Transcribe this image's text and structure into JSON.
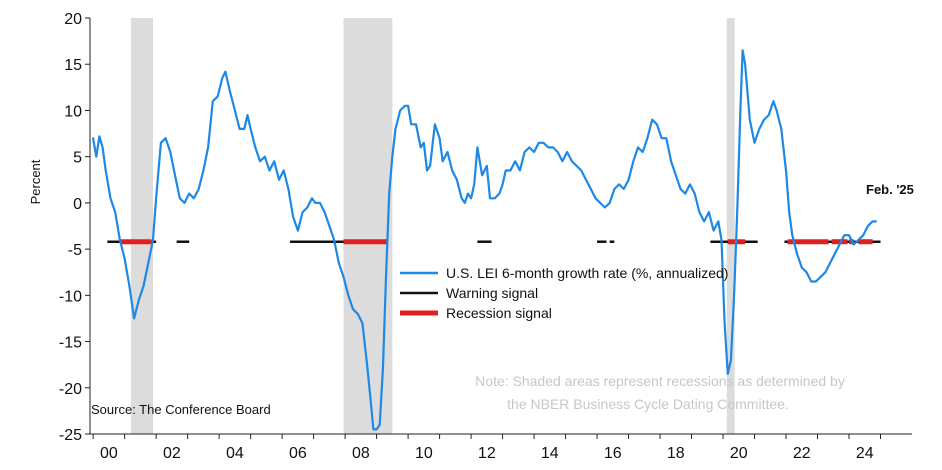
{
  "chart_data": {
    "type": "line",
    "title": "",
    "xlabel": "",
    "ylabel": "Percent",
    "ylim": [
      -25,
      20
    ],
    "xlim": [
      1999.9,
      2026.0
    ],
    "yticks": [
      20,
      15,
      10,
      5,
      0,
      -5,
      -10,
      -15,
      -20,
      -25
    ],
    "xticks": [
      {
        "year": 2000.5,
        "label": "00"
      },
      {
        "year": 2002.5,
        "label": "02"
      },
      {
        "year": 2004.5,
        "label": "04"
      },
      {
        "year": 2006.5,
        "label": "06"
      },
      {
        "year": 2008.5,
        "label": "08"
      },
      {
        "year": 2010.5,
        "label": "10"
      },
      {
        "year": 2012.5,
        "label": "12"
      },
      {
        "year": 2014.5,
        "label": "14"
      },
      {
        "year": 2016.5,
        "label": "16"
      },
      {
        "year": 2018.5,
        "label": "18"
      },
      {
        "year": 2020.5,
        "label": "20"
      },
      {
        "year": 2022.5,
        "label": "22"
      },
      {
        "year": 2024.5,
        "label": "24"
      }
    ],
    "recessions": [
      [
        2001.2,
        2001.9
      ],
      [
        2007.95,
        2009.5
      ],
      [
        2020.12,
        2020.37
      ]
    ],
    "series": [
      {
        "name": "U.S. LEI 6-month growth rate (%, annualized)",
        "color": "#1e88e5",
        "points": [
          [
            2000.0,
            7.0
          ],
          [
            2000.1,
            5.0
          ],
          [
            2000.2,
            7.2
          ],
          [
            2000.3,
            6.0
          ],
          [
            2000.4,
            3.5
          ],
          [
            2000.55,
            0.5
          ],
          [
            2000.7,
            -1.0
          ],
          [
            2000.85,
            -4.0
          ],
          [
            2001.0,
            -6.0
          ],
          [
            2001.15,
            -9.0
          ],
          [
            2001.3,
            -12.5
          ],
          [
            2001.45,
            -10.5
          ],
          [
            2001.6,
            -9.0
          ],
          [
            2001.75,
            -6.5
          ],
          [
            2001.9,
            -4.0
          ],
          [
            2002.0,
            0.5
          ],
          [
            2002.15,
            6.5
          ],
          [
            2002.3,
            7.0
          ],
          [
            2002.45,
            5.5
          ],
          [
            2002.6,
            3.0
          ],
          [
            2002.75,
            0.5
          ],
          [
            2002.9,
            0.0
          ],
          [
            2003.05,
            1.0
          ],
          [
            2003.2,
            0.5
          ],
          [
            2003.35,
            1.5
          ],
          [
            2003.5,
            3.5
          ],
          [
            2003.65,
            6.0
          ],
          [
            2003.8,
            11.0
          ],
          [
            2003.95,
            11.5
          ],
          [
            2004.1,
            13.5
          ],
          [
            2004.2,
            14.2
          ],
          [
            2004.35,
            12.0
          ],
          [
            2004.5,
            10.0
          ],
          [
            2004.65,
            8.0
          ],
          [
            2004.8,
            8.0
          ],
          [
            2004.9,
            9.5
          ],
          [
            2005.0,
            8.0
          ],
          [
            2005.15,
            6.0
          ],
          [
            2005.3,
            4.5
          ],
          [
            2005.45,
            5.0
          ],
          [
            2005.6,
            3.5
          ],
          [
            2005.75,
            4.5
          ],
          [
            2005.9,
            2.5
          ],
          [
            2006.05,
            3.5
          ],
          [
            2006.2,
            1.5
          ],
          [
            2006.35,
            -1.5
          ],
          [
            2006.5,
            -3.0
          ],
          [
            2006.65,
            -1.0
          ],
          [
            2006.8,
            -0.5
          ],
          [
            2006.95,
            0.5
          ],
          [
            2007.05,
            0.0
          ],
          [
            2007.2,
            0.0
          ],
          [
            2007.35,
            -1.0
          ],
          [
            2007.5,
            -2.5
          ],
          [
            2007.65,
            -4.0
          ],
          [
            2007.8,
            -6.5
          ],
          [
            2007.95,
            -8.0
          ],
          [
            2008.1,
            -10.0
          ],
          [
            2008.25,
            -11.5
          ],
          [
            2008.4,
            -12.0
          ],
          [
            2008.55,
            -13.0
          ],
          [
            2008.7,
            -17.5
          ],
          [
            2008.8,
            -21.0
          ],
          [
            2008.9,
            -24.5
          ],
          [
            2009.0,
            -24.5
          ],
          [
            2009.1,
            -24.0
          ],
          [
            2009.2,
            -18.0
          ],
          [
            2009.3,
            -8.0
          ],
          [
            2009.4,
            1.0
          ],
          [
            2009.5,
            5.0
          ],
          [
            2009.6,
            8.0
          ],
          [
            2009.75,
            10.0
          ],
          [
            2009.9,
            10.5
          ],
          [
            2010.0,
            10.5
          ],
          [
            2010.1,
            8.5
          ],
          [
            2010.25,
            8.5
          ],
          [
            2010.4,
            6.0
          ],
          [
            2010.5,
            6.5
          ],
          [
            2010.6,
            3.5
          ],
          [
            2010.7,
            4.0
          ],
          [
            2010.85,
            8.5
          ],
          [
            2011.0,
            7.0
          ],
          [
            2011.1,
            4.5
          ],
          [
            2011.25,
            5.5
          ],
          [
            2011.4,
            3.5
          ],
          [
            2011.55,
            2.5
          ],
          [
            2011.7,
            0.5
          ],
          [
            2011.8,
            0.0
          ],
          [
            2011.9,
            1.0
          ],
          [
            2012.0,
            0.5
          ],
          [
            2012.1,
            2.0
          ],
          [
            2012.2,
            6.0
          ],
          [
            2012.35,
            3.0
          ],
          [
            2012.5,
            4.0
          ],
          [
            2012.6,
            0.5
          ],
          [
            2012.75,
            0.5
          ],
          [
            2012.9,
            1.0
          ],
          [
            2013.0,
            2.0
          ],
          [
            2013.1,
            3.5
          ],
          [
            2013.25,
            3.5
          ],
          [
            2013.4,
            4.5
          ],
          [
            2013.55,
            3.5
          ],
          [
            2013.7,
            5.5
          ],
          [
            2013.85,
            6.0
          ],
          [
            2014.0,
            5.5
          ],
          [
            2014.15,
            6.5
          ],
          [
            2014.3,
            6.5
          ],
          [
            2014.45,
            6.0
          ],
          [
            2014.6,
            6.0
          ],
          [
            2014.75,
            5.5
          ],
          [
            2014.9,
            4.5
          ],
          [
            2015.05,
            5.5
          ],
          [
            2015.2,
            4.5
          ],
          [
            2015.35,
            4.0
          ],
          [
            2015.5,
            3.5
          ],
          [
            2015.65,
            2.5
          ],
          [
            2015.8,
            1.5
          ],
          [
            2015.95,
            0.5
          ],
          [
            2016.1,
            0.0
          ],
          [
            2016.25,
            -0.5
          ],
          [
            2016.4,
            0.0
          ],
          [
            2016.55,
            1.5
          ],
          [
            2016.7,
            2.0
          ],
          [
            2016.85,
            1.5
          ],
          [
            2017.0,
            2.5
          ],
          [
            2017.15,
            4.5
          ],
          [
            2017.3,
            6.0
          ],
          [
            2017.45,
            5.5
          ],
          [
            2017.6,
            7.0
          ],
          [
            2017.75,
            9.0
          ],
          [
            2017.9,
            8.5
          ],
          [
            2018.05,
            7.0
          ],
          [
            2018.2,
            7.0
          ],
          [
            2018.35,
            4.5
          ],
          [
            2018.5,
            3.0
          ],
          [
            2018.65,
            1.5
          ],
          [
            2018.8,
            1.0
          ],
          [
            2018.95,
            2.0
          ],
          [
            2019.1,
            1.0
          ],
          [
            2019.25,
            -1.0
          ],
          [
            2019.4,
            -2.0
          ],
          [
            2019.55,
            -1.0
          ],
          [
            2019.7,
            -3.0
          ],
          [
            2019.85,
            -2.0
          ],
          [
            2019.95,
            -4.0
          ],
          [
            2020.05,
            -13.0
          ],
          [
            2020.15,
            -18.5
          ],
          [
            2020.25,
            -17.0
          ],
          [
            2020.35,
            -10.0
          ],
          [
            2020.45,
            -1.0
          ],
          [
            2020.55,
            10.0
          ],
          [
            2020.62,
            16.5
          ],
          [
            2020.7,
            15.0
          ],
          [
            2020.85,
            9.0
          ],
          [
            2021.0,
            6.5
          ],
          [
            2021.15,
            8.0
          ],
          [
            2021.3,
            9.0
          ],
          [
            2021.45,
            9.5
          ],
          [
            2021.6,
            11.0
          ],
          [
            2021.7,
            10.0
          ],
          [
            2021.85,
            8.0
          ],
          [
            2022.0,
            3.5
          ],
          [
            2022.1,
            -1.0
          ],
          [
            2022.2,
            -3.5
          ],
          [
            2022.35,
            -5.5
          ],
          [
            2022.5,
            -7.0
          ],
          [
            2022.65,
            -7.5
          ],
          [
            2022.8,
            -8.5
          ],
          [
            2022.95,
            -8.5
          ],
          [
            2023.1,
            -8.0
          ],
          [
            2023.25,
            -7.5
          ],
          [
            2023.4,
            -6.5
          ],
          [
            2023.55,
            -5.5
          ],
          [
            2023.7,
            -4.5
          ],
          [
            2023.85,
            -3.5
          ],
          [
            2024.0,
            -3.5
          ],
          [
            2024.15,
            -4.5
          ],
          [
            2024.3,
            -4.0
          ],
          [
            2024.45,
            -3.5
          ],
          [
            2024.6,
            -2.5
          ],
          [
            2024.75,
            -2.0
          ],
          [
            2024.85,
            -2.0
          ]
        ]
      }
    ],
    "warning_signal": {
      "name": "Warning signal",
      "color": "#111111",
      "y": -4.2,
      "segments": [
        [
          2000.45,
          2002.0
        ],
        [
          2002.65,
          2003.05
        ],
        [
          2006.25,
          2007.55
        ],
        [
          2007.55,
          2009.35
        ],
        [
          2012.2,
          2012.65
        ],
        [
          2016.0,
          2016.3
        ],
        [
          2016.4,
          2016.55
        ],
        [
          2019.6,
          2021.1
        ],
        [
          2021.95,
          2025.0
        ]
      ]
    },
    "recession_signal": {
      "name": "Recession signal",
      "color": "#e02020",
      "y": -4.2,
      "segments": [
        [
          2000.85,
          2001.85
        ],
        [
          2007.95,
          2009.35
        ],
        [
          2020.15,
          2020.7
        ],
        [
          2022.05,
          2023.35
        ],
        [
          2023.45,
          2023.95
        ],
        [
          2024.0,
          2024.15
        ],
        [
          2024.3,
          2024.75
        ]
      ]
    },
    "legend": {
      "position": "center-right",
      "entries": [
        {
          "label": "U.S. LEI 6-month growth rate (%, annualized)",
          "color": "#1e88e5",
          "kind": "line"
        },
        {
          "label": "Warning signal",
          "color": "#111111",
          "kind": "line"
        },
        {
          "label": "Recession signal",
          "color": "#e02020",
          "kind": "thick-line"
        }
      ]
    },
    "annotations": {
      "end_label": "Feb. '25",
      "note_line1": "Note: Shaded areas represent recessions as determined by",
      "note_line2": "the NBER Business Cycle Dating Committee.",
      "source": "Source: The Conference Board"
    }
  }
}
